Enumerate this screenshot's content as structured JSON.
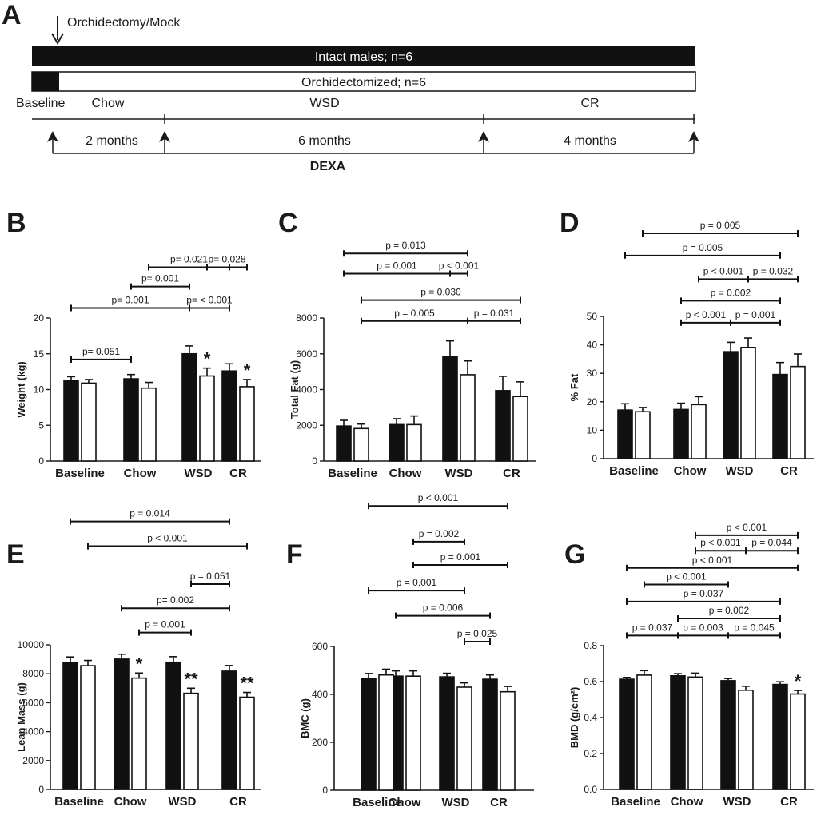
{
  "figure": {
    "panel_letters": [
      "A",
      "B",
      "C",
      "D",
      "E",
      "F",
      "G"
    ]
  },
  "timeline": {
    "arrow_label": "Orchidectomy/Mock",
    "bar_intact_label": "Intact males; n=6",
    "bar_orx_label": "Orchidectomized; n=6",
    "phases": [
      "Baseline",
      "Chow",
      "WSD",
      "CR"
    ],
    "durations": [
      "2 months",
      "6 months",
      "4 months"
    ],
    "dexa_label": "DEXA"
  },
  "chart_data": [
    {
      "id": "B",
      "type": "bar",
      "title": "",
      "xlabel": "",
      "ylabel": "Weight (kg)",
      "categories": [
        "Baseline",
        "Chow",
        "WSD",
        "CR"
      ],
      "ylim": [
        0,
        20
      ],
      "yticks": [
        0,
        5,
        10,
        15,
        20
      ],
      "ytick_labels": [
        "0",
        "5",
        "10",
        "15",
        "20"
      ],
      "series": [
        {
          "name": "Intact males",
          "fill": "#111111",
          "values": [
            11.2,
            11.5,
            15.0,
            12.6
          ],
          "errors": [
            0.6,
            0.6,
            1.1,
            1.0
          ]
        },
        {
          "name": "Orchidectomized",
          "fill": "#ffffff",
          "values": [
            10.9,
            10.2,
            11.9,
            10.4
          ],
          "errors": [
            0.5,
            0.8,
            1.1,
            1.0
          ]
        }
      ],
      "stars": [
        {
          "cat": 2,
          "series": 1,
          "text": "*"
        },
        {
          "cat": 3,
          "series": 1,
          "text": "*"
        }
      ],
      "comparisons": [
        {
          "label": "p= 0.021",
          "from": [
            1,
            1
          ],
          "to": [
            3,
            0
          ],
          "y": 27.1,
          "mid": [
            2,
            1
          ]
        },
        {
          "label": "p= 0.028",
          "y": 27.1,
          "from": [
            2,
            1
          ],
          "to": [
            3,
            1
          ],
          "hidden_line": true
        },
        {
          "label": "p= 0.001",
          "from": [
            1,
            0
          ],
          "to": [
            2,
            0
          ],
          "y": 24.4
        },
        {
          "label": "p= 0.001",
          "from": [
            0,
            0
          ],
          "to": [
            2,
            0
          ],
          "y": 21.4
        },
        {
          "label": "p= < 0.001",
          "from": [
            2,
            0
          ],
          "to": [
            3,
            0
          ],
          "y": 21.4
        },
        {
          "label": "p= 0.051",
          "from": [
            0,
            0
          ],
          "to": [
            1,
            0
          ],
          "y": 14.2
        }
      ]
    },
    {
      "id": "C",
      "type": "bar",
      "title": "",
      "xlabel": "",
      "ylabel": "Total Fat (g)",
      "categories": [
        "Baseline",
        "Chow",
        "WSD",
        "CR"
      ],
      "ylim": [
        0,
        8000
      ],
      "yticks": [
        0,
        2000,
        4000,
        6000,
        8000
      ],
      "ytick_labels": [
        "0",
        "2000",
        "4000",
        "6000",
        "8000"
      ],
      "series": [
        {
          "name": "Intact males",
          "fill": "#111111",
          "values": [
            1960,
            2040,
            5860,
            3940
          ],
          "errors": [
            320,
            330,
            860,
            800
          ]
        },
        {
          "name": "Orchidectomized",
          "fill": "#ffffff",
          "values": [
            1820,
            2040,
            4830,
            3610
          ],
          "errors": [
            250,
            480,
            770,
            820
          ]
        }
      ],
      "stars": [],
      "comparisons": [
        {
          "label": "p = 0.013",
          "from": [
            0,
            0
          ],
          "to": [
            2,
            1
          ],
          "y": 11610
        },
        {
          "label": "p = 0.001",
          "from": [
            0,
            0
          ],
          "to": [
            2,
            0
          ],
          "y": 10480
        },
        {
          "label": "p < 0.001",
          "from": [
            2,
            0
          ],
          "to": [
            2,
            1
          ],
          "y": 10480
        },
        {
          "label": "p = 0.030",
          "from": [
            0,
            1
          ],
          "to": [
            3,
            1
          ],
          "y": 9000
        },
        {
          "label": "p = 0.005",
          "from": [
            0,
            1
          ],
          "to": [
            2,
            1
          ],
          "y": 7830
        },
        {
          "label": "p = 0.031",
          "from": [
            2,
            1
          ],
          "to": [
            3,
            1
          ],
          "y": 7830
        }
      ]
    },
    {
      "id": "D",
      "type": "bar",
      "title": "",
      "xlabel": "",
      "ylabel": "% Fat",
      "categories": [
        "Baseline",
        "Chow",
        "WSD",
        "CR"
      ],
      "ylim": [
        0,
        50
      ],
      "yticks": [
        0,
        10,
        20,
        30,
        40,
        50
      ],
      "ytick_labels": [
        "0",
        "10",
        "20",
        "30",
        "40",
        "50"
      ],
      "series": [
        {
          "name": "Intact males",
          "fill": "#111111",
          "values": [
            17.1,
            17.3,
            37.6,
            29.6
          ],
          "errors": [
            2.2,
            2.2,
            3.3,
            4.2
          ]
        },
        {
          "name": "Orchidectomized",
          "fill": "#ffffff",
          "values": [
            16.5,
            19.0,
            39.1,
            32.4
          ],
          "errors": [
            1.5,
            2.8,
            3.3,
            4.4
          ]
        }
      ],
      "stars": [],
      "comparisons": [
        {
          "label": "p = 0.005",
          "from": [
            0,
            1
          ],
          "to": [
            3,
            1
          ],
          "y": 79.2
        },
        {
          "label": "p = 0.005",
          "from": [
            0,
            0
          ],
          "to": [
            3,
            0
          ],
          "y": 71.4
        },
        {
          "label": "p < 0.001",
          "from": [
            1,
            1
          ],
          "to": [
            2,
            1
          ],
          "y": 63.1
        },
        {
          "label": "p = 0.032",
          "from": [
            2,
            1
          ],
          "to": [
            3,
            1
          ],
          "y": 63.1
        },
        {
          "label": "p = 0.002",
          "from": [
            1,
            0
          ],
          "to": [
            3,
            0
          ],
          "y": 55.5
        },
        {
          "label": "p < 0.001",
          "from": [
            1,
            0
          ],
          "to": [
            2,
            0
          ],
          "y": 47.8
        },
        {
          "label": "p = 0.001",
          "from": [
            2,
            0
          ],
          "to": [
            3,
            0
          ],
          "y": 47.8
        }
      ]
    },
    {
      "id": "E",
      "type": "bar",
      "title": "",
      "xlabel": "",
      "ylabel": "Lean Mass (g)",
      "categories": [
        "Baseline",
        "Chow",
        "WSD",
        "CR"
      ],
      "ylim": [
        0,
        10000
      ],
      "yticks": [
        0,
        2000,
        4000,
        6000,
        8000,
        10000
      ],
      "ytick_labels": [
        "0",
        "2000",
        "4000",
        "6000",
        "8000",
        "10000"
      ],
      "series": [
        {
          "name": "Intact males",
          "fill": "#111111",
          "values": [
            8780,
            9010,
            8800,
            8180
          ],
          "errors": [
            380,
            340,
            380,
            390
          ]
        },
        {
          "name": "Orchidectomized",
          "fill": "#ffffff",
          "values": [
            8560,
            7700,
            6650,
            6380
          ],
          "errors": [
            360,
            350,
            350,
            330
          ]
        }
      ],
      "stars": [
        {
          "cat": 1,
          "series": 1,
          "text": "*"
        },
        {
          "cat": 2,
          "series": 1,
          "text": "**"
        },
        {
          "cat": 3,
          "series": 1,
          "text": "**"
        }
      ],
      "comparisons": [
        {
          "label": "p = 0.014",
          "from": [
            0,
            0
          ],
          "to": [
            3,
            0
          ],
          "y": 18530
        },
        {
          "label": "p < 0.001",
          "from": [
            0,
            1
          ],
          "to": [
            3,
            1
          ],
          "y": 16820
        },
        {
          "label": "p = 0.051",
          "from": [
            2,
            1
          ],
          "to": [
            3,
            0
          ],
          "y": 14200
        },
        {
          "label": "p= 0.002",
          "from": [
            1,
            0
          ],
          "to": [
            3,
            0
          ],
          "y": 12530
        },
        {
          "label": "p = 0.001",
          "from": [
            1,
            1
          ],
          "to": [
            2,
            1
          ],
          "y": 10850
        }
      ]
    },
    {
      "id": "F",
      "type": "bar",
      "title": "",
      "xlabel": "",
      "ylabel": "BMC (g)",
      "categories": [
        "Baseline",
        "Chow",
        "WSD",
        "CR"
      ],
      "ylim": [
        0,
        600
      ],
      "yticks": [
        0,
        200,
        400,
        600
      ],
      "ytick_labels": [
        "0",
        "200",
        "400",
        "600"
      ],
      "series": [
        {
          "name": "Intact males",
          "fill": "#111111",
          "values": [
            465,
            476,
            473,
            463
          ],
          "errors": [
            22,
            22,
            15,
            18
          ]
        },
        {
          "name": "Orchidectomized",
          "fill": "#ffffff",
          "values": [
            481,
            476,
            430,
            411
          ],
          "errors": [
            24,
            22,
            18,
            22
          ]
        }
      ],
      "stars": [],
      "comparisons": [
        {
          "label": "p < 0.001",
          "from": [
            0,
            0
          ],
          "to": [
            3,
            1
          ],
          "y": 1186
        },
        {
          "label": "p = 0.002",
          "from": [
            1,
            1
          ],
          "to": [
            2,
            1
          ],
          "y": 1037
        },
        {
          "label": "p = 0.001",
          "from": [
            1,
            1
          ],
          "to": [
            3,
            1
          ],
          "y": 940
        },
        {
          "label": "p = 0.001",
          "from": [
            0,
            0
          ],
          "to": [
            2,
            1
          ],
          "y": 833
        },
        {
          "label": "p = 0.006",
          "from": [
            1,
            0
          ],
          "to": [
            3,
            0
          ],
          "y": 728
        },
        {
          "label": "p = 0.025",
          "from": [
            2,
            1
          ],
          "to": [
            3,
            0
          ],
          "y": 620
        }
      ]
    },
    {
      "id": "G",
      "type": "bar",
      "title": "",
      "xlabel": "",
      "ylabel": "BMD (g/cm²)",
      "categories": [
        "Baseline",
        "Chow",
        "WSD",
        "CR"
      ],
      "ylim": [
        0,
        0.8
      ],
      "yticks": [
        0,
        0.2,
        0.4,
        0.6,
        0.8
      ],
      "ytick_labels": [
        "0.0",
        "0.2",
        "0.4",
        "0.6",
        "0.8"
      ],
      "series": [
        {
          "name": "Intact males",
          "fill": "#111111",
          "values": [
            0.613,
            0.632,
            0.605,
            0.584
          ],
          "errors": [
            0.01,
            0.012,
            0.012,
            0.015
          ]
        },
        {
          "name": "Orchidectomized",
          "fill": "#ffffff",
          "values": [
            0.636,
            0.625,
            0.552,
            0.531
          ],
          "errors": [
            0.025,
            0.022,
            0.022,
            0.02
          ]
        }
      ],
      "stars": [
        {
          "cat": 3,
          "series": 1,
          "text": "*"
        }
      ],
      "comparisons": [
        {
          "label": "p < 0.001",
          "from": [
            1,
            1
          ],
          "to": [
            3,
            1
          ],
          "y": 1.414
        },
        {
          "label": "p < 0.001",
          "from": [
            1,
            1
          ],
          "to": [
            2,
            1
          ],
          "y": 1.328
        },
        {
          "label": "p = 0.044",
          "from": [
            2,
            1
          ],
          "to": [
            3,
            1
          ],
          "y": 1.328
        },
        {
          "label": "p < 0.001",
          "from": [
            0,
            0
          ],
          "to": [
            3,
            1
          ],
          "y": 1.232
        },
        {
          "label": "p < 0.001",
          "from": [
            0,
            1
          ],
          "to": [
            2,
            0
          ],
          "y": 1.14
        },
        {
          "label": "p = 0.037",
          "from": [
            0,
            0
          ],
          "to": [
            3,
            0
          ],
          "y": 1.045
        },
        {
          "label": "p = 0.002",
          "from": [
            1,
            0
          ],
          "to": [
            3,
            0
          ],
          "y": 0.951
        },
        {
          "label": "p = 0.037",
          "from": [
            0,
            0
          ],
          "to": [
            1,
            0
          ],
          "y": 0.856
        },
        {
          "label": "p = 0.003",
          "from": [
            1,
            0
          ],
          "to": [
            2,
            0
          ],
          "y": 0.856
        },
        {
          "label": "p = 0.045",
          "from": [
            2,
            0
          ],
          "to": [
            3,
            0
          ],
          "y": 0.856
        }
      ]
    }
  ]
}
